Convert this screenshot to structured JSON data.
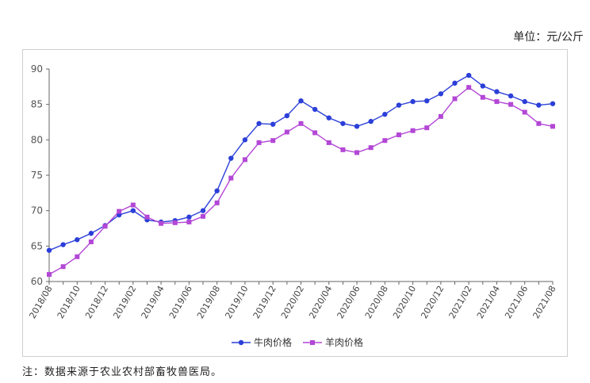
{
  "unit_label": "单位：元/公斤",
  "note": "注：数据来源于农业农村部畜牧兽医局。",
  "colors": {
    "beef": "#2b3fd8",
    "mutton": "#b347d6"
  },
  "chart_data": {
    "type": "line",
    "title": "",
    "xlabel": "",
    "ylabel": "",
    "ylim": [
      60,
      90
    ],
    "yticks": [
      60,
      65,
      70,
      75,
      80,
      85,
      90
    ],
    "x": [
      "2018/08",
      "2018/09",
      "2018/10",
      "2018/11",
      "2018/12",
      "2019/01",
      "2019/02",
      "2019/03",
      "2019/04",
      "2019/05",
      "2019/06",
      "2019/07",
      "2019/08",
      "2019/09",
      "2019/10",
      "2019/11",
      "2019/12",
      "2020/01",
      "2020/02",
      "2020/03",
      "2020/04",
      "2020/05",
      "2020/06",
      "2020/07",
      "2020/08",
      "2020/09",
      "2020/10",
      "2020/11",
      "2020/12",
      "2021/01",
      "2021/02",
      "2021/03",
      "2021/04",
      "2021/05",
      "2021/06",
      "2021/07",
      "2021/08"
    ],
    "xtick_labels": [
      "2018/08",
      "2018/10",
      "2018/12",
      "2019/02",
      "2019/04",
      "2019/06",
      "2019/08",
      "2019/10",
      "2019/12",
      "2020/02",
      "2020/04",
      "2020/06",
      "2020/08",
      "2020/10",
      "2020/12",
      "2021/02",
      "2021/04",
      "2021/06",
      "2021/08"
    ],
    "legend_position": "bottom",
    "grid": false,
    "series": [
      {
        "name": "牛肉价格",
        "marker": "circle",
        "values": [
          64.4,
          65.2,
          65.9,
          66.8,
          67.9,
          69.4,
          70.0,
          68.7,
          68.4,
          68.6,
          69.1,
          70.0,
          72.8,
          77.4,
          80.0,
          82.3,
          82.2,
          83.4,
          85.5,
          84.3,
          83.1,
          82.3,
          81.9,
          82.6,
          83.6,
          84.9,
          85.4,
          85.5,
          86.5,
          88.0,
          89.1,
          87.6,
          86.8,
          86.2,
          85.4,
          84.9,
          85.1
        ]
      },
      {
        "name": "羊肉价格",
        "marker": "square",
        "values": [
          61.0,
          62.1,
          63.5,
          65.6,
          67.8,
          69.9,
          70.8,
          69.1,
          68.2,
          68.3,
          68.4,
          69.2,
          71.1,
          74.6,
          77.2,
          79.6,
          79.9,
          81.1,
          82.3,
          81.0,
          79.6,
          78.6,
          78.2,
          78.9,
          79.9,
          80.7,
          81.3,
          81.7,
          83.3,
          85.8,
          87.4,
          86.0,
          85.4,
          85.0,
          83.9,
          82.3,
          81.9
        ]
      }
    ]
  }
}
